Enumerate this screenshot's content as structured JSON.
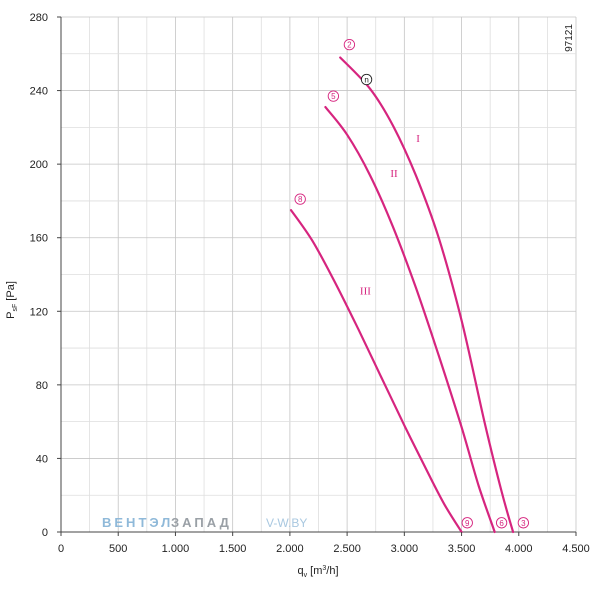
{
  "chart_data": {
    "type": "line",
    "title": "",
    "xlabel": "q",
    "xlabel_sub": "v",
    "xlabel_unit_pre": " [m",
    "xlabel_unit_sup": "3",
    "xlabel_unit_post": "/h]",
    "ylabel": "P",
    "ylabel_sub": "sF",
    "ylabel_unit": " [Pa]",
    "xlim": [
      0,
      4500
    ],
    "ylim": [
      0,
      280
    ],
    "x_ticks": [
      0,
      500,
      1000,
      1500,
      2000,
      2500,
      3000,
      3500,
      4000,
      4500
    ],
    "x_tick_labels": [
      "0",
      "500",
      "1.000",
      "1.500",
      "2.000",
      "2.500",
      "3.000",
      "3.500",
      "4.000",
      "4.500"
    ],
    "y_ticks": [
      0,
      40,
      80,
      120,
      160,
      200,
      240,
      280
    ],
    "y_tick_labels": [
      "0",
      "40",
      "80",
      "120",
      "160",
      "200",
      "240",
      "280"
    ],
    "grid": true,
    "series_color": "#d6257f",
    "series": [
      {
        "name": "I",
        "label_at": [
          3120,
          212
        ],
        "points": [
          [
            2440,
            258
          ],
          [
            2700,
            241
          ],
          [
            2900,
            221
          ],
          [
            3100,
            194
          ],
          [
            3300,
            160
          ],
          [
            3500,
            115
          ],
          [
            3700,
            60
          ],
          [
            3850,
            22
          ],
          [
            3950,
            0
          ]
        ]
      },
      {
        "name": "II",
        "label_at": [
          2910,
          193
        ],
        "points": [
          [
            2310,
            231
          ],
          [
            2500,
            216
          ],
          [
            2700,
            194
          ],
          [
            2900,
            166
          ],
          [
            3100,
            133
          ],
          [
            3300,
            96
          ],
          [
            3500,
            57
          ],
          [
            3650,
            25
          ],
          [
            3790,
            0
          ]
        ]
      },
      {
        "name": "III",
        "label_at": [
          2660,
          129
        ],
        "points": [
          [
            2010,
            175
          ],
          [
            2200,
            158
          ],
          [
            2400,
            135
          ],
          [
            2600,
            110
          ],
          [
            2800,
            84
          ],
          [
            3000,
            58
          ],
          [
            3200,
            33
          ],
          [
            3350,
            15
          ],
          [
            3500,
            0
          ]
        ]
      }
    ],
    "markers": [
      {
        "label": "2",
        "x": 2520,
        "y": 265
      },
      {
        "label": "5",
        "x": 2380,
        "y": 237
      },
      {
        "label": "8",
        "x": 2090,
        "y": 181
      },
      {
        "label": "9",
        "x": 3550,
        "y": 5
      },
      {
        "label": "6",
        "x": 3850,
        "y": 5
      },
      {
        "label": "3",
        "x": 4040,
        "y": 5
      }
    ],
    "n_marker": {
      "label": "n",
      "x": 2670,
      "y": 246
    },
    "code": "97121",
    "watermark": {
      "part1": "ВЕНТЭЛ",
      "part2": "ЗАПАД",
      "part3": "V-W.BY"
    }
  }
}
